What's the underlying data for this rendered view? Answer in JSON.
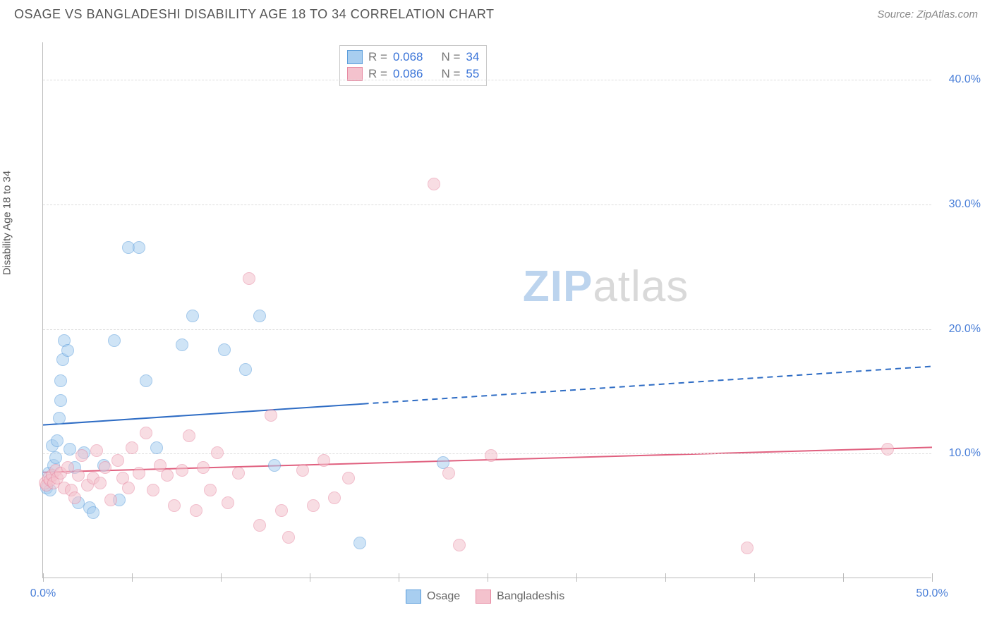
{
  "header": {
    "title": "OSAGE VS BANGLADESHI DISABILITY AGE 18 TO 34 CORRELATION CHART",
    "source_label": "Source: ",
    "source_value": "ZipAtlas.com"
  },
  "chart": {
    "type": "scatter",
    "ylabel": "Disability Age 18 to 34",
    "xlim": [
      0,
      50
    ],
    "ylim": [
      0,
      43
    ],
    "xtick_positions": [
      0,
      5,
      10,
      15,
      20,
      25,
      30,
      35,
      40,
      45,
      50
    ],
    "xtick_labels": {
      "0": "0.0%",
      "50": "50.0%"
    },
    "ytick_positions": [
      10,
      20,
      30,
      40
    ],
    "ytick_labels": {
      "10": "10.0%",
      "20": "20.0%",
      "30": "30.0%",
      "40": "40.0%"
    },
    "grid_color": "#dddddd",
    "axis_color": "#bbbbbb",
    "tick_label_color": "#4a7fd8",
    "background_color": "#ffffff",
    "marker_radius": 9,
    "marker_opacity": 0.55,
    "series": [
      {
        "name": "Osage",
        "color_fill": "#a8cef0",
        "color_stroke": "#5b9ddb",
        "R": "0.068",
        "N": "34",
        "trend": {
          "y_at_x0": 12.3,
          "y_at_x50": 17.0,
          "solid_until_x": 18,
          "color": "#2e6cc4",
          "width": 2
        },
        "points": [
          [
            0.2,
            7.2
          ],
          [
            0.3,
            8.4
          ],
          [
            0.4,
            7.0
          ],
          [
            0.5,
            10.6
          ],
          [
            0.6,
            9.0
          ],
          [
            0.7,
            9.6
          ],
          [
            0.8,
            11.0
          ],
          [
            0.9,
            12.8
          ],
          [
            1.0,
            14.2
          ],
          [
            1.0,
            15.8
          ],
          [
            1.1,
            17.5
          ],
          [
            1.2,
            19.0
          ],
          [
            1.4,
            18.2
          ],
          [
            1.5,
            10.3
          ],
          [
            1.8,
            8.8
          ],
          [
            2.0,
            6.0
          ],
          [
            2.3,
            10.0
          ],
          [
            2.6,
            5.6
          ],
          [
            2.8,
            5.2
          ],
          [
            3.4,
            9.0
          ],
          [
            4.0,
            19.0
          ],
          [
            4.3,
            6.2
          ],
          [
            4.8,
            26.5
          ],
          [
            5.4,
            26.5
          ],
          [
            5.8,
            15.8
          ],
          [
            6.4,
            10.4
          ],
          [
            7.8,
            18.7
          ],
          [
            8.4,
            21.0
          ],
          [
            10.2,
            18.3
          ],
          [
            11.4,
            16.7
          ],
          [
            12.2,
            21.0
          ],
          [
            13.0,
            9.0
          ],
          [
            17.8,
            2.8
          ],
          [
            22.5,
            9.2
          ]
        ]
      },
      {
        "name": "Bangladeshis",
        "color_fill": "#f4c2cd",
        "color_stroke": "#e78aa3",
        "R": "0.086",
        "N": "55",
        "trend": {
          "y_at_x0": 8.5,
          "y_at_x50": 10.5,
          "solid_until_x": 50,
          "color": "#e0607f",
          "width": 2
        },
        "points": [
          [
            0.1,
            7.6
          ],
          [
            0.2,
            7.4
          ],
          [
            0.3,
            8.0
          ],
          [
            0.4,
            7.8
          ],
          [
            0.5,
            8.2
          ],
          [
            0.6,
            7.6
          ],
          [
            0.7,
            8.6
          ],
          [
            0.8,
            8.0
          ],
          [
            1.0,
            8.4
          ],
          [
            1.2,
            7.2
          ],
          [
            1.4,
            8.8
          ],
          [
            1.6,
            7.0
          ],
          [
            1.8,
            6.4
          ],
          [
            2.0,
            8.2
          ],
          [
            2.2,
            9.8
          ],
          [
            2.5,
            7.4
          ],
          [
            2.8,
            8.0
          ],
          [
            3.0,
            10.2
          ],
          [
            3.2,
            7.6
          ],
          [
            3.5,
            8.8
          ],
          [
            3.8,
            6.2
          ],
          [
            4.2,
            9.4
          ],
          [
            4.5,
            8.0
          ],
          [
            4.8,
            7.2
          ],
          [
            5.0,
            10.4
          ],
          [
            5.4,
            8.4
          ],
          [
            5.8,
            11.6
          ],
          [
            6.2,
            7.0
          ],
          [
            6.6,
            9.0
          ],
          [
            7.0,
            8.2
          ],
          [
            7.4,
            5.8
          ],
          [
            7.8,
            8.6
          ],
          [
            8.2,
            11.4
          ],
          [
            8.6,
            5.4
          ],
          [
            9.0,
            8.8
          ],
          [
            9.4,
            7.0
          ],
          [
            9.8,
            10.0
          ],
          [
            10.4,
            6.0
          ],
          [
            11.0,
            8.4
          ],
          [
            11.6,
            24.0
          ],
          [
            12.2,
            4.2
          ],
          [
            12.8,
            13.0
          ],
          [
            13.4,
            5.4
          ],
          [
            13.8,
            3.2
          ],
          [
            14.6,
            8.6
          ],
          [
            15.2,
            5.8
          ],
          [
            15.8,
            9.4
          ],
          [
            16.4,
            6.4
          ],
          [
            17.2,
            8.0
          ],
          [
            22.0,
            31.6
          ],
          [
            22.8,
            8.4
          ],
          [
            23.4,
            2.6
          ],
          [
            25.2,
            9.8
          ],
          [
            39.6,
            2.4
          ],
          [
            47.5,
            10.3
          ]
        ]
      }
    ],
    "legend_corr": {
      "R_label": "R =",
      "N_label": "N ="
    },
    "legend_bottom": {
      "items": [
        "Osage",
        "Bangladeshis"
      ]
    },
    "watermark": {
      "text_zip": "ZIP",
      "text_atlas": "atlas",
      "color_zip": "#bcd4ee",
      "color_atlas": "#d9d9d9"
    }
  }
}
